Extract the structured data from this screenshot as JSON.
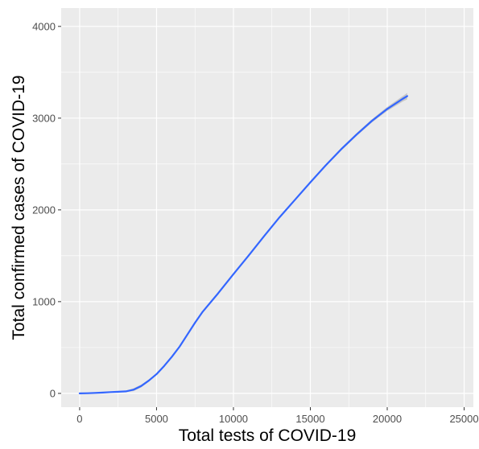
{
  "chart_data": {
    "type": "line",
    "title": "",
    "xlabel": "Total tests of COVID-19",
    "ylabel": "Total confirmed cases of COVID-19",
    "xlim": [
      -1200,
      25600
    ],
    "ylim": [
      -150,
      4200
    ],
    "x_ticks": [
      0,
      5000,
      10000,
      15000,
      20000,
      25000
    ],
    "x_tick_labels": [
      "0",
      "5000",
      "10000",
      "15000",
      "20000",
      "25000"
    ],
    "y_ticks": [
      0,
      1000,
      2000,
      3000,
      4000
    ],
    "y_tick_labels": [
      "0",
      "1000",
      "2000",
      "3000",
      "4000"
    ],
    "grid": true,
    "legend": "none",
    "colors": {
      "panel": "#ebebeb",
      "grid": "#ffffff",
      "line": "#3366ff",
      "band": "#999999"
    },
    "series": [
      {
        "x": [
          0,
          500,
          1000,
          1500,
          2000,
          2500,
          3000,
          3500,
          4000,
          4500,
          5000,
          5500,
          6000,
          6500,
          7000,
          7500,
          8000,
          9000,
          10000,
          11000,
          12000,
          13000,
          14000,
          15000,
          16000,
          17000,
          18000,
          19000,
          20000,
          21000,
          21300
        ],
        "y": [
          0,
          2,
          5,
          9,
          14,
          18,
          22,
          40,
          80,
          140,
          210,
          300,
          400,
          510,
          640,
          770,
          890,
          1090,
          1300,
          1505,
          1715,
          1920,
          2110,
          2300,
          2485,
          2660,
          2820,
          2970,
          3100,
          3210,
          3240
        ],
        "band_halfwidth": [
          0,
          0,
          0,
          0,
          0,
          0,
          8,
          15,
          15,
          12,
          10,
          8,
          8,
          8,
          8,
          8,
          8,
          8,
          8,
          8,
          8,
          8,
          8,
          10,
          12,
          14,
          16,
          18,
          22,
          30,
          35
        ]
      }
    ]
  }
}
